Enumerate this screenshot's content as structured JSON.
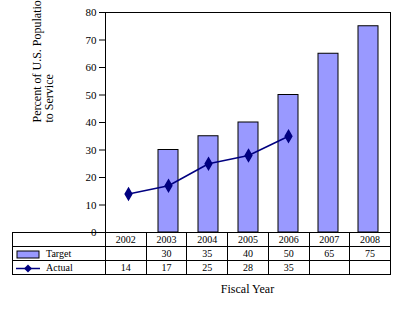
{
  "chart_data": {
    "type": "bar",
    "x_label": "Fiscal Year",
    "y_label": "Percent of U.S. Population with Access to Service",
    "categories": [
      "2002",
      "2003",
      "2004",
      "2005",
      "2006",
      "2007",
      "2008"
    ],
    "series": [
      {
        "name": "Target",
        "type": "bar",
        "color": "#9999ff",
        "values": [
          null,
          30,
          35,
          40,
          50,
          65,
          75
        ]
      },
      {
        "name": "Actual",
        "type": "line",
        "color": "#000080",
        "marker": "diamond",
        "line_style": "solid",
        "values": [
          14,
          17,
          25,
          28,
          35,
          null,
          null
        ]
      }
    ],
    "ylim": [
      0,
      80
    ],
    "yticks": [
      0,
      10,
      20,
      30,
      40,
      50,
      60,
      70,
      80
    ],
    "grid": false,
    "legend": "bottom"
  }
}
